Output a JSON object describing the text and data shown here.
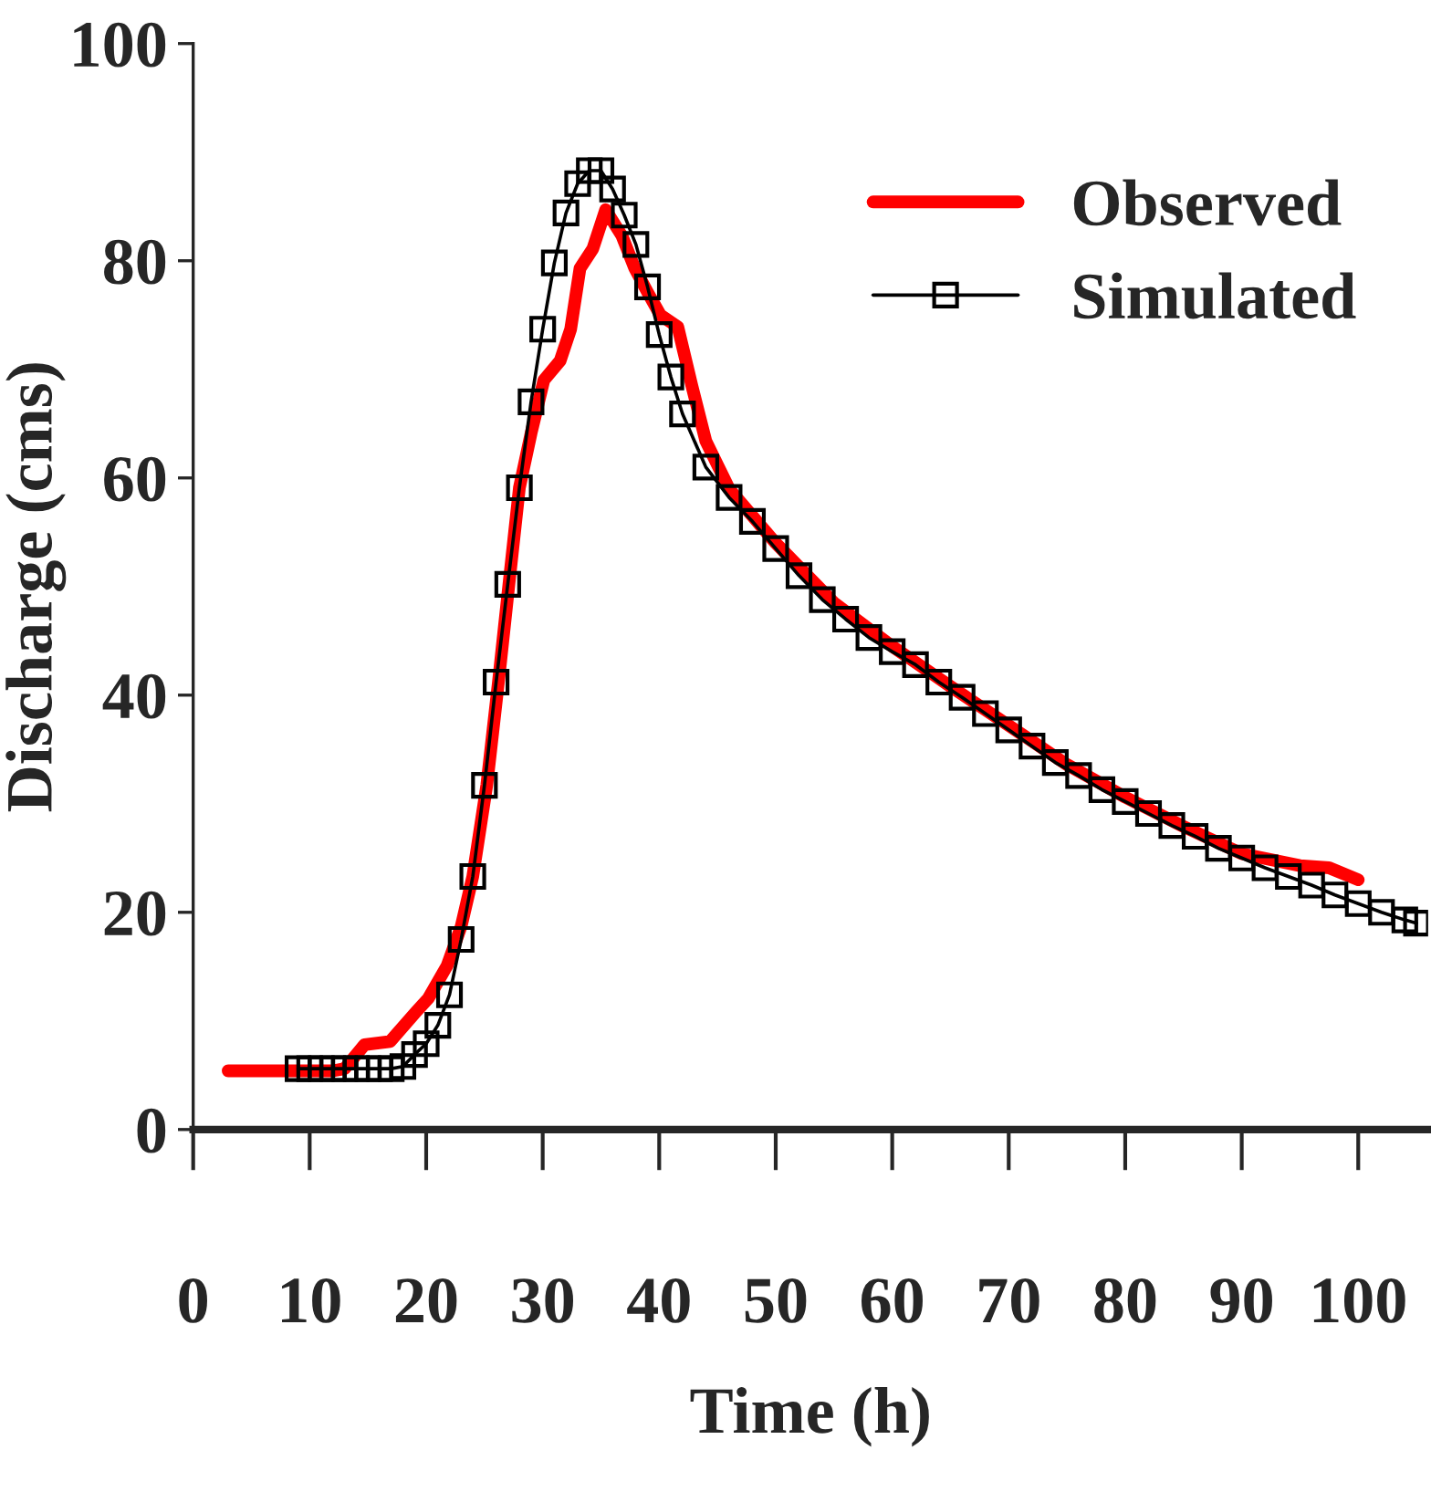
{
  "chart_data": {
    "type": "line",
    "xlabel": "Time (h)",
    "ylabel": "Discharge (cms)",
    "xlim": [
      0,
      106
    ],
    "ylim": [
      0,
      100
    ],
    "xticks": [
      0,
      10,
      20,
      30,
      40,
      50,
      60,
      70,
      80,
      90,
      100
    ],
    "yticks": [
      0,
      20,
      40,
      60,
      80,
      100
    ],
    "grid": false,
    "legend": "top right",
    "series": [
      {
        "name": "Observed",
        "color": "#ff0000",
        "marker": "none",
        "x": [
          3,
          6,
          9,
          12,
          13,
          14.7,
          16.9,
          19.1,
          20.2,
          21.8,
          23,
          24,
          25.2,
          26.2,
          27.1,
          28,
          29,
          30.1,
          31.5,
          32.4,
          33.2,
          34.3,
          35.4,
          36.8,
          37.9,
          39,
          40.1,
          41.6,
          42.8,
          44,
          46,
          50,
          55,
          60,
          65,
          70,
          75,
          80,
          85,
          90,
          95,
          97.5,
          100
        ],
        "values": [
          5.4,
          5.4,
          5.4,
          5.4,
          5.6,
          7.8,
          8.1,
          10.8,
          12.1,
          15.1,
          18.7,
          23.3,
          31.7,
          41.2,
          50.2,
          59.1,
          64.1,
          69.0,
          70.8,
          73.7,
          79.3,
          81.1,
          84.7,
          82.3,
          79.3,
          77.1,
          75.0,
          73.9,
          68.5,
          63.4,
          59.0,
          54.0,
          48.5,
          44.5,
          40.8,
          37.2,
          33.6,
          30.6,
          27.9,
          25.4,
          24.3,
          24.1,
          23.0
        ]
      },
      {
        "name": "Simulated",
        "color": "#000000",
        "marker": "square",
        "x": [
          9,
          10,
          11,
          12,
          13,
          14,
          15,
          16,
          17,
          18,
          19,
          20,
          21,
          22,
          23,
          24,
          25,
          26,
          27,
          28,
          29,
          30,
          31,
          32,
          33,
          34,
          35,
          36,
          37,
          38,
          39,
          40,
          41,
          42,
          44,
          46,
          48,
          50,
          52,
          54,
          56,
          58,
          60,
          62,
          64,
          66,
          68,
          70,
          72,
          74,
          76,
          78,
          80,
          82,
          84,
          86,
          88,
          90,
          92,
          94,
          96,
          98,
          100,
          102,
          104,
          105
        ],
        "values": [
          5.6,
          5.6,
          5.6,
          5.6,
          5.6,
          5.6,
          5.6,
          5.6,
          5.6,
          5.8,
          6.9,
          7.9,
          9.6,
          12.4,
          17.5,
          23.3,
          31.7,
          41.2,
          50.2,
          59.1,
          67.0,
          73.7,
          79.8,
          84.4,
          87.1,
          88.3,
          88.3,
          86.6,
          84.2,
          81.5,
          77.6,
          73.2,
          69.3,
          65.9,
          61.0,
          58.2,
          56.0,
          53.5,
          51.0,
          48.8,
          47.0,
          45.3,
          44.0,
          42.8,
          41.2,
          39.8,
          38.3,
          36.8,
          35.3,
          33.8,
          32.6,
          31.3,
          30.2,
          29.1,
          28.0,
          27.0,
          25.9,
          25.0,
          24.1,
          23.3,
          22.5,
          21.6,
          20.8,
          20.0,
          19.3,
          19.0
        ]
      }
    ]
  }
}
